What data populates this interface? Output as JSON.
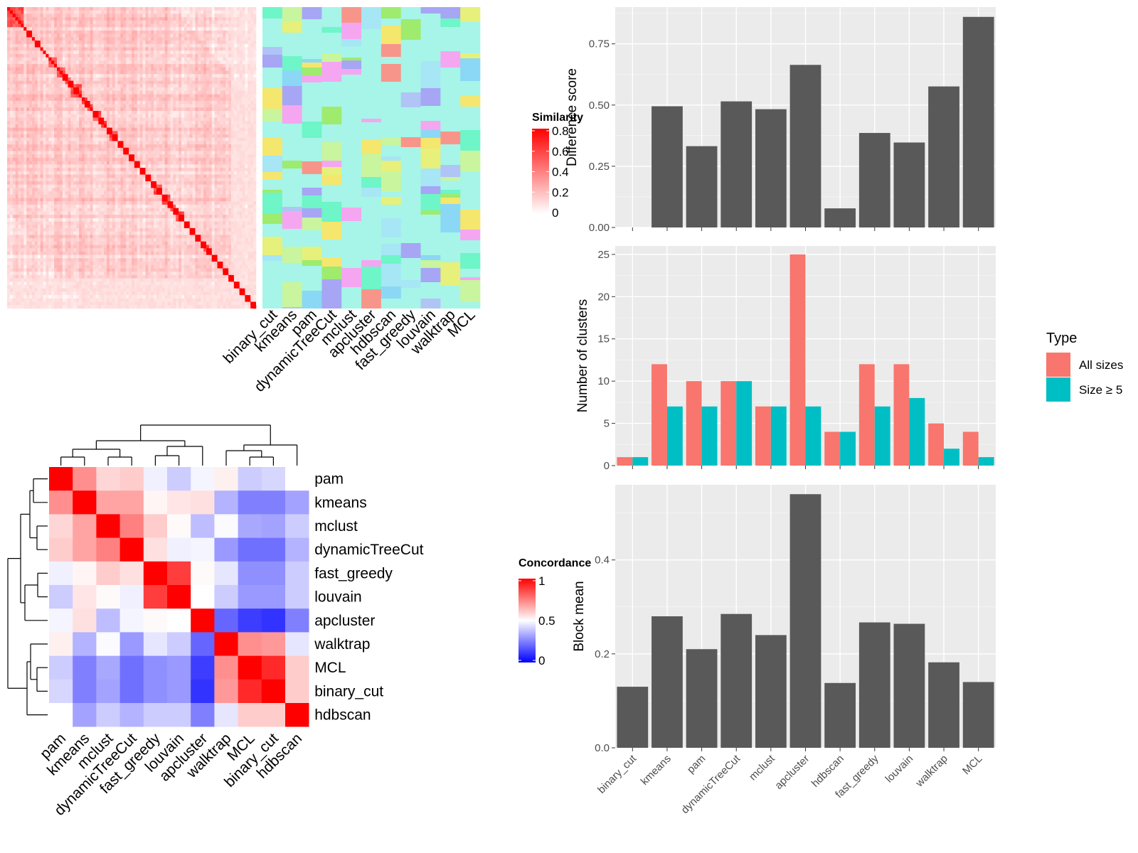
{
  "methods_heat_order": [
    "binary_cut",
    "kmeans",
    "pam",
    "dynamicTreeCut",
    "mclust",
    "apcluster",
    "hdbscan",
    "fast_greedy",
    "louvain",
    "walktrap",
    "MCL"
  ],
  "similarity_legend": {
    "title": "Similarity",
    "ticks": [
      "0.8",
      "0.6",
      "0.4",
      "0.2",
      "0"
    ]
  },
  "concordance_legend": {
    "title": "Concordance",
    "ticks": [
      "1",
      "0.5",
      "0"
    ]
  },
  "colors": {
    "panel_bg": "#EBEBEB",
    "grid": "#FFFFFF",
    "bar": "#595959",
    "all_sizes": "#F8766D",
    "size5": "#00BFC4",
    "sim_high": "#FF0000",
    "sim_low": "#FFFFFF",
    "conc_high": "#FF0000",
    "conc_mid": "#FFFFFF",
    "conc_low": "#0000FF",
    "cluster_bg": "#A6F5E8"
  },
  "chart_data": [
    {
      "type": "heatmap",
      "name": "similarity",
      "legend_title": "Similarity",
      "range": [
        0,
        0.8
      ],
      "block_sizes": [
        1,
        1,
        1,
        1,
        1,
        1,
        1,
        1,
        1,
        1,
        1,
        1,
        2,
        1,
        1,
        1,
        1,
        1,
        1,
        1,
        2,
        1,
        1,
        1,
        1,
        1,
        1,
        1,
        1,
        1,
        1,
        1,
        1,
        1,
        1,
        1,
        1,
        1,
        1,
        1,
        1,
        1,
        1,
        1,
        1,
        1,
        1,
        1,
        1,
        1,
        1,
        1,
        1,
        1,
        1,
        1,
        1,
        1,
        1,
        1,
        1,
        1,
        1,
        1,
        1,
        1,
        1,
        1,
        1,
        1,
        1,
        1,
        1,
        1,
        1,
        1,
        1,
        1,
        1,
        1,
        1,
        1,
        1,
        1,
        1,
        1,
        1,
        1,
        1,
        1,
        1,
        1,
        1,
        1,
        1,
        1,
        1,
        1,
        1,
        1
      ],
      "diagonal_value": 0.8,
      "off_diagonal_typical": 0.15
    },
    {
      "type": "heatmap",
      "name": "cluster-assignments",
      "columns": [
        "binary_cut",
        "kmeans",
        "pam",
        "dynamicTreeCut",
        "mclust",
        "apcluster",
        "hdbscan",
        "fast_greedy",
        "louvain",
        "walktrap",
        "MCL"
      ]
    },
    {
      "type": "heatmap",
      "name": "concordance",
      "legend_title": "Concordance",
      "rows": [
        "pam",
        "kmeans",
        "mclust",
        "dynamicTreeCut",
        "fast_greedy",
        "louvain",
        "apcluster",
        "walktrap",
        "MCL",
        "binary_cut",
        "hdbscan"
      ],
      "columns": [
        "pam",
        "kmeans",
        "mclust",
        "dynamicTreeCut",
        "fast_greedy",
        "louvain",
        "apcluster",
        "walktrap",
        "MCL",
        "binary_cut",
        "hdbscan"
      ],
      "range": [
        0,
        1
      ],
      "values": [
        [
          1.0,
          0.72,
          0.58,
          0.6,
          0.47,
          0.4,
          0.48,
          0.53,
          0.4,
          0.42,
          0.5
        ],
        [
          0.72,
          1.0,
          0.68,
          0.68,
          0.52,
          0.55,
          0.56,
          0.35,
          0.25,
          0.25,
          0.32
        ],
        [
          0.58,
          0.68,
          1.0,
          0.75,
          0.6,
          0.51,
          0.37,
          0.49,
          0.33,
          0.32,
          0.4
        ],
        [
          0.6,
          0.68,
          0.75,
          1.0,
          0.56,
          0.47,
          0.48,
          0.3,
          0.22,
          0.22,
          0.35
        ],
        [
          0.47,
          0.52,
          0.6,
          0.56,
          1.0,
          0.88,
          0.51,
          0.45,
          0.28,
          0.28,
          0.4
        ],
        [
          0.4,
          0.55,
          0.51,
          0.47,
          0.88,
          1.0,
          0.5,
          0.4,
          0.3,
          0.3,
          0.4
        ],
        [
          0.48,
          0.56,
          0.37,
          0.48,
          0.51,
          0.5,
          1.0,
          0.2,
          0.12,
          0.1,
          0.25
        ],
        [
          0.53,
          0.35,
          0.49,
          0.3,
          0.45,
          0.4,
          0.2,
          1.0,
          0.72,
          0.7,
          0.45
        ],
        [
          0.4,
          0.25,
          0.33,
          0.22,
          0.28,
          0.3,
          0.12,
          0.72,
          1.0,
          0.92,
          0.6
        ],
        [
          0.42,
          0.25,
          0.32,
          0.22,
          0.28,
          0.3,
          0.1,
          0.7,
          0.92,
          1.0,
          0.6
        ],
        [
          0.5,
          0.32,
          0.4,
          0.35,
          0.4,
          0.4,
          0.25,
          0.45,
          0.6,
          0.6,
          1.0
        ]
      ]
    },
    {
      "type": "bar",
      "name": "difference-score",
      "categories": [
        "binary_cut",
        "kmeans",
        "pam",
        "dynamicTreeCut",
        "mclust",
        "apcluster",
        "hdbscan",
        "fast_greedy",
        "louvain",
        "walktrap",
        "MCL"
      ],
      "values": [
        0,
        0.495,
        0.332,
        0.515,
        0.483,
        0.664,
        0.078,
        0.386,
        0.347,
        0.576,
        0.86
      ],
      "ylabel": "Difference score",
      "ylim": [
        0,
        0.9
      ],
      "yticks": [
        "0.00",
        "0.25",
        "0.50",
        "0.75"
      ]
    },
    {
      "type": "bar",
      "name": "number-of-clusters",
      "categories": [
        "binary_cut",
        "kmeans",
        "pam",
        "dynamicTreeCut",
        "mclust",
        "apcluster",
        "hdbscan",
        "fast_greedy",
        "louvain",
        "walktrap",
        "MCL"
      ],
      "series": [
        {
          "name": "All sizes",
          "values": [
            1,
            12,
            10,
            10,
            7,
            25,
            4,
            12,
            12,
            5,
            4
          ]
        },
        {
          "name": "Size ≥ 5",
          "values": [
            1,
            7,
            7,
            10,
            7,
            7,
            4,
            7,
            8,
            2,
            1
          ]
        }
      ],
      "ylabel": "Number of clusters",
      "ylim": [
        0,
        26
      ],
      "yticks": [
        "0",
        "5",
        "10",
        "15",
        "20",
        "25"
      ],
      "legend_title": "Type",
      "legend_position": "right"
    },
    {
      "type": "bar",
      "name": "block-mean",
      "categories": [
        "binary_cut",
        "kmeans",
        "pam",
        "dynamicTreeCut",
        "mclust",
        "apcluster",
        "hdbscan",
        "fast_greedy",
        "louvain",
        "walktrap",
        "MCL"
      ],
      "values": [
        0.13,
        0.28,
        0.21,
        0.285,
        0.24,
        0.54,
        0.138,
        0.267,
        0.264,
        0.182,
        0.14
      ],
      "ylabel": "Block mean",
      "ylim": [
        0,
        0.56
      ],
      "yticks": [
        "0.0",
        "0.2",
        "0.4"
      ]
    }
  ]
}
